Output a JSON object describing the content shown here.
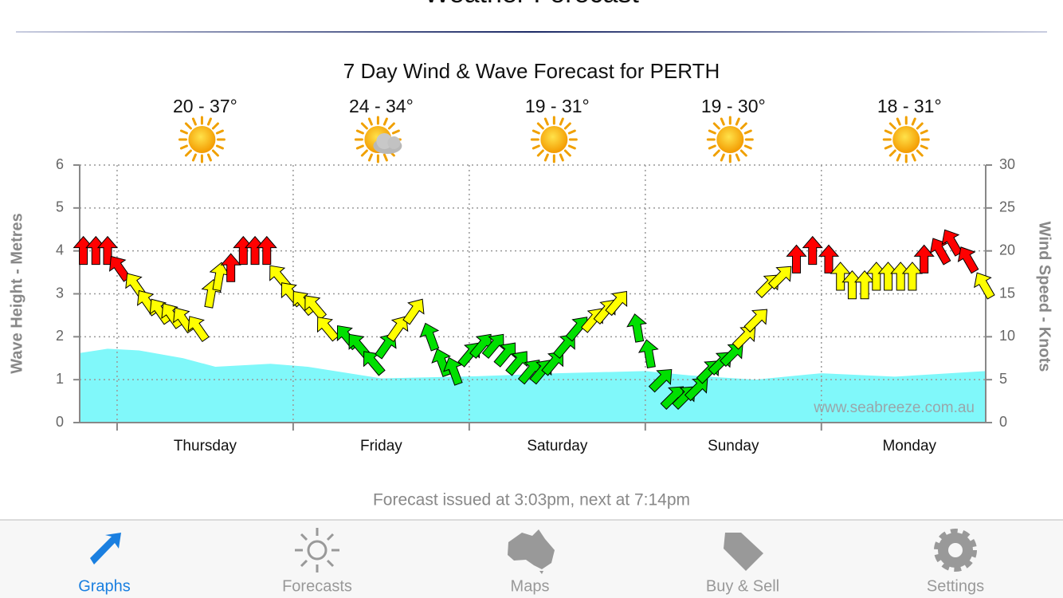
{
  "header": {
    "title": "Weather Forecast"
  },
  "chart_data": {
    "type": "wind-wave",
    "title": "7 Day Wind & Wave Forecast for PERTH",
    "ylabel": "Wave Height - Metres",
    "y2label": "Wind Speed - Knots",
    "watermark": "www.seabreeze.com.au",
    "xlim": [
      -5.1,
      118.4
    ],
    "xticks": [
      0,
      24,
      48,
      72,
      96
    ],
    "ylim": [
      0,
      6
    ],
    "yticks": [
      0,
      1,
      2,
      3,
      4,
      5,
      6
    ],
    "y2lim": [
      0,
      30
    ],
    "y2ticks": [
      0,
      5,
      10,
      15,
      20,
      25,
      30
    ],
    "grid": true,
    "days": [
      {
        "name": "Thursday",
        "temp": "20 - 37°",
        "icon": "sun"
      },
      {
        "name": "Friday",
        "temp": "24 - 34°",
        "icon": "sun-cloud"
      },
      {
        "name": "Saturday",
        "temp": "19 - 31°",
        "icon": "sun"
      },
      {
        "name": "Sunday",
        "temp": "19 - 30°",
        "icon": "sun"
      },
      {
        "name": "Monday",
        "temp": "18 - 31°",
        "icon": "sun"
      }
    ],
    "wave": {
      "color": "#80f8fa",
      "x": [
        -5.1,
        -1.3,
        3,
        9,
        13.4,
        20.9,
        26,
        36,
        49,
        60,
        72,
        78,
        87,
        96,
        106,
        118.4
      ],
      "values": [
        1.62,
        1.72,
        1.68,
        1.5,
        1.3,
        1.37,
        1.3,
        1.03,
        1.08,
        1.15,
        1.2,
        1.1,
        1.0,
        1.15,
        1.07,
        1.2
      ]
    },
    "wind": {
      "axis": "y2",
      "x": [
        -4.6,
        -2.9,
        -1.3,
        0.3,
        2.5,
        4.1,
        5.8,
        7.4,
        9.0,
        11.0,
        12.8,
        13.9,
        15.5,
        17.2,
        18.8,
        20.4,
        22.1,
        23.7,
        25.3,
        26.9,
        28.6,
        31.3,
        32.9,
        34.9,
        36.7,
        38.3,
        40.5,
        42.7,
        44.3,
        45.9,
        48.1,
        49.7,
        51.4,
        53.0,
        54.6,
        56.3,
        57.9,
        59.5,
        61.1,
        62.8,
        64.9,
        66.6,
        68.2,
        70.9,
        72.5,
        74.2,
        75.8,
        77.4,
        79.1,
        80.7,
        82.3,
        83.9,
        85.6,
        87.2,
        88.8,
        90.5,
        92.6,
        94.8,
        97.0,
        98.6,
        100.2,
        101.9,
        103.5,
        105.1,
        106.8,
        108.4,
        110.0,
        112.2,
        113.8,
        116.0,
        118.2
      ],
      "values": [
        20,
        20,
        20,
        18,
        16,
        14,
        13,
        12.5,
        12,
        11,
        15,
        17,
        18,
        20,
        20,
        20,
        17,
        15,
        14,
        13.5,
        11,
        10,
        9,
        7,
        9,
        11,
        13,
        10,
        7,
        6,
        8,
        9,
        9,
        8,
        7,
        6,
        6,
        7,
        9,
        11,
        12,
        13,
        14,
        11,
        8,
        5,
        3,
        3,
        4,
        6,
        7,
        8,
        10,
        12,
        16,
        17,
        19,
        20,
        19,
        17,
        16,
        16,
        17,
        17,
        17,
        17,
        19,
        20,
        21,
        19,
        16
      ],
      "colors": [
        "#ff0000",
        "#ff0000",
        "#ff0000",
        "#ff0000",
        "#ffff00",
        "#ffff00",
        "#ffff00",
        "#ffff00",
        "#ffff00",
        "#ffff00",
        "#ffff00",
        "#ffff00",
        "#ff0000",
        "#ff0000",
        "#ff0000",
        "#ff0000",
        "#ffff00",
        "#ffff00",
        "#ffff00",
        "#ffff00",
        "#ffff00",
        "#00e000",
        "#00e000",
        "#00e000",
        "#00e000",
        "#ffff00",
        "#ffff00",
        "#00e000",
        "#00e000",
        "#00e000",
        "#00e000",
        "#00e000",
        "#00e000",
        "#00e000",
        "#00e000",
        "#00e000",
        "#00e000",
        "#00e000",
        "#00e000",
        "#00e000",
        "#ffff00",
        "#ffff00",
        "#ffff00",
        "#00e000",
        "#00e000",
        "#00e000",
        "#00e000",
        "#00e000",
        "#00e000",
        "#00e000",
        "#00e000",
        "#00e000",
        "#ffff00",
        "#ffff00",
        "#ffff00",
        "#ffff00",
        "#ff0000",
        "#ff0000",
        "#ff0000",
        "#ffff00",
        "#ffff00",
        "#ffff00",
        "#ffff00",
        "#ffff00",
        "#ffff00",
        "#ffff00",
        "#ff0000",
        "#ff0000",
        "#ff0000",
        "#ff0000",
        "#ffff00"
      ],
      "headings": [
        0,
        0,
        0,
        -35,
        -35,
        -35,
        -35,
        -35,
        -35,
        -35,
        10,
        10,
        0,
        0,
        0,
        0,
        -40,
        -40,
        -40,
        -40,
        -40,
        -40,
        -40,
        -40,
        35,
        35,
        35,
        -20,
        -20,
        -20,
        40,
        40,
        40,
        40,
        40,
        40,
        40,
        40,
        40,
        40,
        40,
        40,
        40,
        -10,
        -10,
        45,
        45,
        45,
        45,
        45,
        45,
        45,
        45,
        45,
        45,
        45,
        0,
        0,
        0,
        0,
        0,
        0,
        0,
        0,
        0,
        0,
        0,
        -30,
        -30,
        -30,
        -30
      ]
    }
  },
  "footer": "Forecast issued at 3:03pm, next at 7:14pm",
  "tabs": [
    {
      "label": "Graphs",
      "active": true
    },
    {
      "label": "Forecasts",
      "active": false
    },
    {
      "label": "Maps",
      "active": false
    },
    {
      "label": "Buy & Sell",
      "active": false
    },
    {
      "label": "Settings",
      "active": false
    }
  ]
}
